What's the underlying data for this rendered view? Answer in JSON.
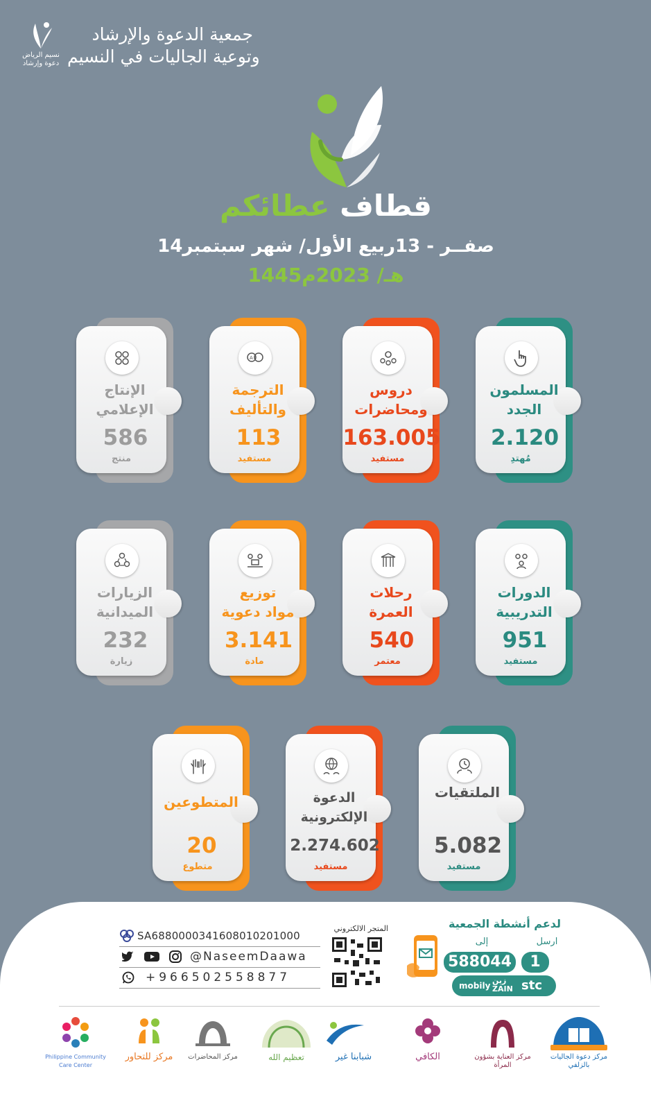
{
  "header": {
    "org_name_line1": "جمعية الدعوة والإرشاد",
    "org_name_line2": "وتوعية الجاليات في النسيم",
    "logo_caption_line1": "نسيم الرياض",
    "logo_caption_line2": "دعوة وإرشاد"
  },
  "hero": {
    "title_part1": "قطاف",
    "title_part2": "عطائكم",
    "period": "14صفــر - 13ربيع الأول/ شهر سبتمبر",
    "year": "1445هـ/ 2023م"
  },
  "cards": [
    {
      "label_line1": "المسلمون",
      "label_line2": "الجدد",
      "value": "2.120",
      "unit": "مُهتدِ",
      "icon": "pointer-hand-icon"
    },
    {
      "label_line1": "دروس",
      "label_line2": "ومحاضرات",
      "value": "163.005",
      "unit": "مستفيد",
      "icon": "lecture-group-icon"
    },
    {
      "label_line1": "الترجمة",
      "label_line2": "والتأليف",
      "value": "113",
      "unit": "مستفيد",
      "icon": "translation-icon"
    },
    {
      "label_line1": "الإنتاج",
      "label_line2": "الإعلامي",
      "value": "586",
      "unit": "منتج",
      "icon": "media-production-icon"
    },
    {
      "label_line1": "الدورات",
      "label_line2": "التدريبية",
      "value": "951",
      "unit": "مستفيد",
      "icon": "training-people-icon"
    },
    {
      "label_line1": "رحلات",
      "label_line2": "العمرة",
      "value": "540",
      "unit": "معتمر",
      "icon": "umrah-icon"
    },
    {
      "label_line1": "توزيع",
      "label_line2": "مواد دعوية",
      "value": "3.141",
      "unit": "مادة",
      "icon": "distribution-icon"
    },
    {
      "label_line1": "الزيارات",
      "label_line2": "الميدانية",
      "value": "232",
      "unit": "زيارة",
      "icon": "field-visits-icon"
    },
    {
      "label_line1": "الملتقيات",
      "label_line2": "",
      "value": "5.082",
      "unit": "مستفيد",
      "icon": "meetings-clock-icon"
    },
    {
      "label_line1": "الدعوة",
      "label_line2": "الإلكترونية",
      "value": "2.274.602",
      "unit": "مستفيد",
      "icon": "globe-people-icon"
    },
    {
      "label_line1": "المتطوعين",
      "label_line2": "",
      "value": "20",
      "unit": "متطوع",
      "icon": "raised-hands-icon"
    }
  ],
  "footer": {
    "support_title": "لدعم أنشطة الجمعية",
    "send_label": "ارسل",
    "to_label": "إلى",
    "sms_code": "1",
    "sms_number": "588044",
    "carriers": [
      "stc",
      "زين",
      "mobily"
    ],
    "carrier_zain_en": "ZAIN",
    "store_label": "المتجر الالكتروني",
    "iban": "SA6880000341608010201000",
    "handle": "@NaseemDaawa",
    "phone": "+966502558877"
  },
  "partners": [
    {
      "name": "مركز دعوة الجاليات بالزلفي",
      "color": "#1e6fb4"
    },
    {
      "name": "مركز العناية بشؤون المرأة",
      "color": "#8b2a4a"
    },
    {
      "name": "الكافي",
      "color": "#a33a7a"
    },
    {
      "name": "شبابنا غير",
      "color": "#1e6fb4"
    },
    {
      "name": "تعظيم الله",
      "color": "#6aa84f"
    },
    {
      "name": "مركز المحاضرات",
      "color": "#555555"
    },
    {
      "name": "مركز للتحاور",
      "color": "#e87722"
    },
    {
      "name": "Philippine Community Care Center",
      "color": "#4a7bd0"
    }
  ],
  "colors": {
    "background": "#7e8d9b",
    "teal": "#2e9084",
    "red": "#f0521e",
    "orange": "#f7941d",
    "gray": "#a6a7a9",
    "green": "#8cc63f"
  }
}
